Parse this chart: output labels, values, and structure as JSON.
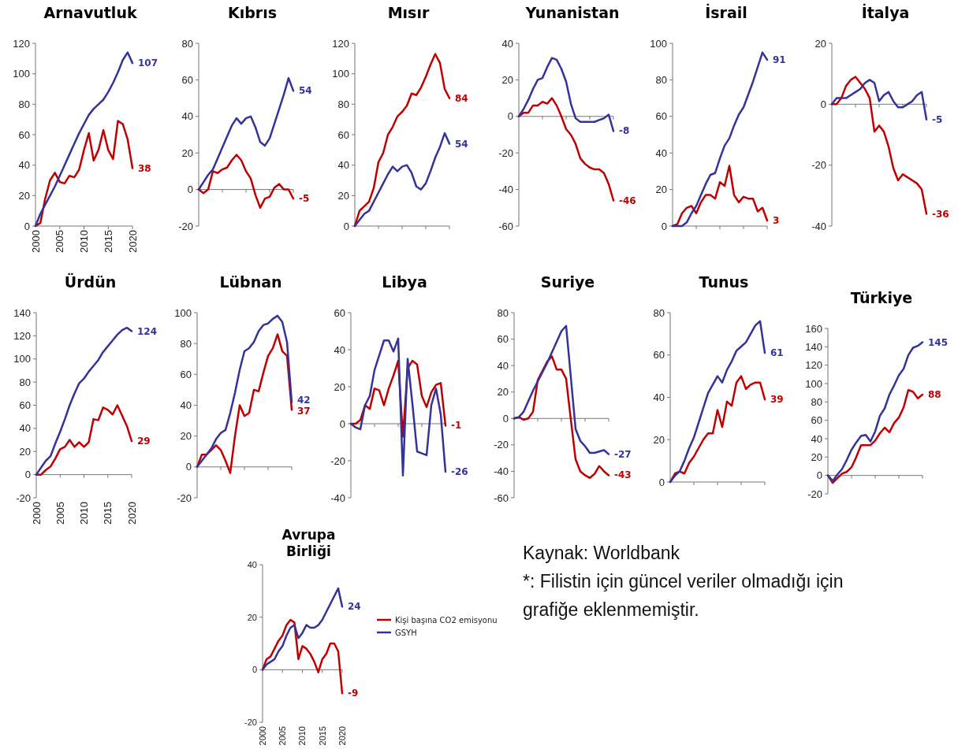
{
  "chart_data": [
    {
      "type": "line",
      "title": "Arnavutluk",
      "x": [
        2000,
        2001,
        2002,
        2003,
        2004,
        2005,
        2006,
        2007,
        2008,
        2009,
        2010,
        2011,
        2012,
        2013,
        2014,
        2015,
        2016,
        2017,
        2018,
        2019,
        2020
      ],
      "xlim": [
        2000,
        2020
      ],
      "xticks": [
        2000,
        2005,
        2010,
        2015,
        2020
      ],
      "ylim": [
        0,
        120
      ],
      "yticks": [
        0,
        20,
        40,
        60,
        80,
        100,
        120
      ],
      "series": [
        {
          "color": "#c00000",
          "values": [
            0,
            2,
            18,
            30,
            35,
            29,
            28,
            33,
            32,
            37,
            50,
            61,
            43,
            50,
            63,
            50,
            44,
            69,
            67,
            57,
            38
          ],
          "value_labels": [
            null,
            null,
            null,
            null,
            null,
            null,
            null,
            null,
            null,
            null,
            null,
            null,
            null,
            null,
            null,
            null,
            null,
            null,
            null,
            null,
            "38"
          ]
        },
        {
          "color": "#333399",
          "values": [
            0,
            8,
            14,
            20,
            26,
            33,
            40,
            47,
            54,
            61,
            67,
            73,
            77,
            80,
            83,
            88,
            94,
            101,
            109,
            114,
            107
          ],
          "value_labels": [
            null,
            null,
            null,
            null,
            null,
            null,
            null,
            null,
            null,
            null,
            null,
            null,
            null,
            null,
            null,
            null,
            null,
            null,
            null,
            null,
            "107"
          ]
        }
      ]
    },
    {
      "type": "line",
      "title": "Kıbrıs",
      "tick_labels": "y",
      "categories": [
        null,
        null,
        null,
        null,
        null,
        null,
        null,
        null,
        null,
        null,
        null,
        null,
        null,
        null,
        null,
        null,
        null,
        null,
        null,
        null,
        null
      ],
      "ylim": [
        -20,
        80
      ],
      "yticks": [
        -20,
        0,
        20,
        40,
        60,
        80
      ],
      "series": [
        {
          "color": "#c00000",
          "values": [
            0,
            -2,
            0,
            10,
            9,
            11,
            12,
            16,
            19,
            16,
            10,
            6,
            -3,
            -10,
            -5,
            -4,
            1,
            3,
            0,
            0,
            -5
          ],
          "value_labels": [
            null,
            null,
            null,
            null,
            null,
            null,
            null,
            null,
            null,
            null,
            null,
            null,
            null,
            null,
            null,
            null,
            null,
            null,
            null,
            null,
            "-5"
          ]
        },
        {
          "color": "#333399",
          "values": [
            0,
            4,
            8,
            11,
            17,
            23,
            29,
            35,
            39,
            36,
            39,
            40,
            34,
            26,
            24,
            28,
            36,
            44,
            52,
            61,
            54
          ],
          "value_labels": [
            null,
            null,
            null,
            null,
            null,
            null,
            null,
            null,
            null,
            null,
            null,
            null,
            null,
            null,
            null,
            null,
            null,
            null,
            null,
            null,
            "54"
          ]
        }
      ]
    },
    {
      "type": "line",
      "title": "Mısır",
      "tick_labels": "y",
      "categories": [
        null,
        null,
        null,
        null,
        null,
        null,
        null,
        null,
        null,
        null,
        null,
        null,
        null,
        null,
        null,
        null,
        null,
        null,
        null,
        null,
        null
      ],
      "ylim": [
        0,
        120
      ],
      "yticks": [
        0,
        20,
        40,
        60,
        80,
        100,
        120
      ],
      "series": [
        {
          "color": "#c00000",
          "values": [
            0,
            10,
            13,
            16,
            25,
            42,
            48,
            60,
            65,
            72,
            75,
            79,
            87,
            86,
            91,
            98,
            106,
            113,
            107,
            90,
            84
          ],
          "value_labels": [
            null,
            null,
            null,
            null,
            null,
            null,
            null,
            null,
            null,
            null,
            null,
            null,
            null,
            null,
            null,
            null,
            null,
            null,
            null,
            null,
            "84"
          ]
        },
        {
          "color": "#333399",
          "values": [
            0,
            4,
            8,
            10,
            16,
            22,
            28,
            34,
            39,
            36,
            39,
            40,
            35,
            26,
            24,
            28,
            36,
            45,
            52,
            61,
            54
          ],
          "value_labels": [
            null,
            null,
            null,
            null,
            null,
            null,
            null,
            null,
            null,
            null,
            null,
            null,
            null,
            null,
            null,
            null,
            null,
            null,
            null,
            null,
            "54"
          ]
        }
      ]
    },
    {
      "type": "line",
      "title": "Yunanistan",
      "tick_labels": "y",
      "categories": [
        null,
        null,
        null,
        null,
        null,
        null,
        null,
        null,
        null,
        null,
        null,
        null,
        null,
        null,
        null,
        null,
        null,
        null,
        null,
        null,
        null
      ],
      "ylim": [
        -60,
        40
      ],
      "yticks": [
        -60,
        -40,
        -20,
        0,
        20,
        40
      ],
      "series": [
        {
          "color": "#c00000",
          "values": [
            0,
            2,
            2,
            6,
            6,
            8,
            7,
            10,
            6,
            0,
            -7,
            -10,
            -15,
            -23,
            -26,
            -28,
            -29,
            -29,
            -31,
            -37,
            -46
          ],
          "value_labels": [
            null,
            null,
            null,
            null,
            null,
            null,
            null,
            null,
            null,
            null,
            null,
            null,
            null,
            null,
            null,
            null,
            null,
            null,
            null,
            null,
            "-46"
          ]
        },
        {
          "color": "#333399",
          "values": [
            0,
            4,
            9,
            15,
            20,
            21,
            27,
            32,
            31,
            26,
            19,
            7,
            -1,
            -3,
            -3,
            -3,
            -3,
            -2,
            -1,
            1,
            -8
          ],
          "value_labels": [
            null,
            null,
            null,
            null,
            null,
            null,
            null,
            null,
            null,
            null,
            null,
            null,
            null,
            null,
            null,
            null,
            null,
            null,
            null,
            null,
            "-8"
          ]
        }
      ]
    },
    {
      "type": "line",
      "title": "İsrail",
      "tick_labels": "y",
      "categories": [
        null,
        null,
        null,
        null,
        null,
        null,
        null,
        null,
        null,
        null,
        null,
        null,
        null,
        null,
        null,
        null,
        null,
        null,
        null,
        null,
        null
      ],
      "ylim": [
        0,
        100
      ],
      "yticks": [
        0,
        20,
        40,
        60,
        80,
        100
      ],
      "series": [
        {
          "color": "#c00000",
          "values": [
            0,
            1,
            7,
            10,
            11,
            7,
            13,
            17,
            17,
            15,
            24,
            22,
            33,
            17,
            13,
            16,
            15,
            15,
            8,
            10,
            3
          ],
          "value_labels": [
            null,
            null,
            null,
            null,
            null,
            null,
            null,
            null,
            null,
            null,
            null,
            null,
            null,
            null,
            null,
            null,
            null,
            null,
            null,
            null,
            "3"
          ]
        },
        {
          "color": "#333399",
          "values": [
            0,
            0,
            0,
            2,
            7,
            11,
            17,
            23,
            28,
            29,
            37,
            44,
            48,
            55,
            61,
            65,
            72,
            79,
            87,
            95,
            91
          ],
          "value_labels": [
            null,
            null,
            null,
            null,
            null,
            null,
            null,
            null,
            null,
            null,
            null,
            null,
            null,
            null,
            null,
            null,
            null,
            null,
            null,
            null,
            "91"
          ]
        }
      ]
    },
    {
      "type": "line",
      "title": "İtalya",
      "tick_labels": "y",
      "categories": [
        null,
        null,
        null,
        null,
        null,
        null,
        null,
        null,
        null,
        null,
        null,
        null,
        null,
        null,
        null,
        null,
        null,
        null,
        null,
        null,
        null
      ],
      "ylim": [
        -40,
        20
      ],
      "yticks": [
        -40,
        -20,
        0,
        20
      ],
      "series": [
        {
          "color": "#c00000",
          "values": [
            0,
            0,
            2,
            6,
            8,
            9,
            7,
            5,
            2,
            -9,
            -7,
            -9,
            -14,
            -21,
            -25,
            -23,
            -24,
            -25,
            -26,
            -28,
            -36
          ],
          "value_labels": [
            null,
            null,
            null,
            null,
            null,
            null,
            null,
            null,
            null,
            null,
            null,
            null,
            null,
            null,
            null,
            null,
            null,
            null,
            null,
            null,
            "-36"
          ]
        },
        {
          "color": "#333399",
          "values": [
            0,
            2,
            2,
            2,
            3,
            4,
            5,
            7,
            8,
            7,
            1,
            3,
            4,
            1,
            -1,
            -1,
            0,
            1,
            3,
            4,
            -5
          ],
          "value_labels": [
            null,
            null,
            null,
            null,
            null,
            null,
            null,
            null,
            null,
            null,
            null,
            null,
            null,
            null,
            null,
            null,
            null,
            null,
            null,
            null,
            "-5"
          ]
        }
      ]
    },
    {
      "type": "line",
      "title": "Ürdün",
      "x": [
        2000,
        2001,
        2002,
        2003,
        2004,
        2005,
        2006,
        2007,
        2008,
        2009,
        2010,
        2011,
        2012,
        2013,
        2014,
        2015,
        2016,
        2017,
        2018,
        2019,
        2020
      ],
      "xlim": [
        2000,
        2020
      ],
      "xticks": [
        2000,
        2005,
        2010,
        2015,
        2020
      ],
      "ylim": [
        -20,
        140
      ],
      "yticks": [
        -20,
        0,
        20,
        40,
        60,
        80,
        100,
        120,
        140
      ],
      "series": [
        {
          "color": "#c00000",
          "values": [
            0,
            0,
            4,
            7,
            14,
            22,
            24,
            30,
            24,
            28,
            24,
            28,
            48,
            47,
            58,
            56,
            52,
            60,
            51,
            42,
            29
          ],
          "value_labels": [
            null,
            null,
            null,
            null,
            null,
            null,
            null,
            null,
            null,
            null,
            null,
            null,
            null,
            null,
            null,
            null,
            null,
            null,
            null,
            null,
            "29"
          ]
        },
        {
          "color": "#333399",
          "values": [
            0,
            6,
            12,
            16,
            27,
            37,
            48,
            60,
            70,
            79,
            83,
            89,
            94,
            99,
            106,
            111,
            116,
            121,
            125,
            127,
            124
          ],
          "value_labels": [
            null,
            null,
            null,
            null,
            null,
            null,
            null,
            null,
            null,
            null,
            null,
            null,
            null,
            null,
            null,
            null,
            null,
            null,
            null,
            null,
            "124"
          ]
        }
      ]
    },
    {
      "type": "line",
      "title": "Lübnan",
      "tick_labels": "y",
      "categories": [
        null,
        null,
        null,
        null,
        null,
        null,
        null,
        null,
        null,
        null,
        null,
        null,
        null,
        null,
        null,
        null,
        null,
        null,
        null,
        null,
        null
      ],
      "ylim": [
        -20,
        100
      ],
      "yticks": [
        -20,
        0,
        20,
        40,
        60,
        80,
        100
      ],
      "series": [
        {
          "color": "#c00000",
          "values": [
            0,
            8,
            8,
            11,
            14,
            11,
            4,
            -4,
            20,
            40,
            33,
            35,
            50,
            49,
            61,
            72,
            77,
            86,
            75,
            72,
            37
          ],
          "value_labels": [
            null,
            null,
            null,
            null,
            null,
            null,
            null,
            null,
            null,
            null,
            null,
            null,
            null,
            null,
            null,
            null,
            null,
            null,
            null,
            null,
            "37"
          ]
        },
        {
          "color": "#333399",
          "values": [
            0,
            4,
            8,
            12,
            18,
            22,
            24,
            35,
            48,
            63,
            75,
            77,
            81,
            88,
            92,
            93,
            96,
            98,
            94,
            81,
            42
          ],
          "value_labels": [
            null,
            null,
            null,
            null,
            null,
            null,
            null,
            null,
            null,
            null,
            null,
            null,
            null,
            null,
            null,
            null,
            null,
            null,
            null,
            null,
            "42"
          ]
        }
      ]
    },
    {
      "type": "line",
      "title": "Libya",
      "tick_labels": "y",
      "categories": [
        null,
        null,
        null,
        null,
        null,
        null,
        null,
        null,
        null,
        null,
        null,
        null,
        null,
        null,
        null,
        null,
        null,
        null,
        null,
        null,
        null
      ],
      "ylim": [
        -40,
        60
      ],
      "yticks": [
        -40,
        -20,
        0,
        20,
        40,
        60
      ],
      "series": [
        {
          "color": "#c00000",
          "values": [
            0,
            0,
            2,
            10,
            8,
            19,
            18,
            10,
            19,
            26,
            34,
            -7,
            30,
            34,
            32,
            15,
            9,
            17,
            21,
            22,
            -1
          ],
          "value_labels": [
            null,
            null,
            null,
            null,
            null,
            null,
            null,
            null,
            null,
            null,
            null,
            null,
            null,
            null,
            null,
            null,
            null,
            null,
            null,
            null,
            "-1"
          ]
        },
        {
          "color": "#333399",
          "values": [
            0,
            -2,
            -3,
            10,
            15,
            29,
            37,
            45,
            45,
            39,
            46,
            -28,
            35,
            11,
            -15,
            -16,
            -17,
            10,
            19,
            5,
            -26
          ],
          "value_labels": [
            null,
            null,
            null,
            null,
            null,
            null,
            null,
            null,
            null,
            null,
            null,
            null,
            null,
            null,
            null,
            null,
            null,
            null,
            null,
            null,
            "-26"
          ]
        }
      ]
    },
    {
      "type": "line",
      "title": "Suriye",
      "tick_labels": "y",
      "categories": [
        null,
        null,
        null,
        null,
        null,
        null,
        null,
        null,
        null,
        null,
        null,
        null,
        null,
        null,
        null,
        null,
        null,
        null,
        null,
        null,
        null
      ],
      "ylim": [
        -60,
        80
      ],
      "yticks": [
        -60,
        -40,
        -20,
        0,
        20,
        40,
        60,
        80
      ],
      "series": [
        {
          "color": "#c00000",
          "values": [
            0,
            1,
            -1,
            0,
            5,
            29,
            36,
            43,
            47,
            37,
            37,
            30,
            -1,
            -31,
            -40,
            -43,
            -45,
            -42,
            -36,
            -40,
            -43
          ],
          "value_labels": [
            null,
            null,
            null,
            null,
            null,
            null,
            null,
            null,
            null,
            null,
            null,
            null,
            null,
            null,
            null,
            null,
            null,
            null,
            null,
            null,
            "-43"
          ]
        },
        {
          "color": "#333399",
          "values": [
            0,
            1,
            5,
            13,
            21,
            28,
            35,
            42,
            50,
            58,
            66,
            70,
            31,
            -8,
            -17,
            -21,
            -26,
            -26,
            -25,
            -24,
            -27
          ],
          "value_labels": [
            null,
            null,
            null,
            null,
            null,
            null,
            null,
            null,
            null,
            null,
            null,
            null,
            null,
            null,
            null,
            null,
            null,
            null,
            null,
            null,
            "-27"
          ]
        }
      ]
    },
    {
      "type": "line",
      "title": "Tunus",
      "tick_labels": "y",
      "categories": [
        null,
        null,
        null,
        null,
        null,
        null,
        null,
        null,
        null,
        null,
        null,
        null,
        null,
        null,
        null,
        null,
        null,
        null,
        null,
        null,
        null
      ],
      "ylim": [
        0,
        80
      ],
      "yticks": [
        0,
        20,
        40,
        60,
        80
      ],
      "series": [
        {
          "color": "#c00000",
          "values": [
            0,
            4,
            5,
            4,
            9,
            12,
            16,
            20,
            23,
            23,
            34,
            26,
            38,
            36,
            47,
            50,
            44,
            46,
            47,
            47,
            39
          ],
          "value_labels": [
            null,
            null,
            null,
            null,
            null,
            null,
            null,
            null,
            null,
            null,
            null,
            null,
            null,
            null,
            null,
            null,
            null,
            null,
            null,
            null,
            "39"
          ]
        },
        {
          "color": "#333399",
          "values": [
            0,
            3,
            5,
            10,
            16,
            21,
            28,
            35,
            42,
            46,
            50,
            47,
            53,
            57,
            62,
            64,
            66,
            70,
            74,
            76,
            61
          ],
          "value_labels": [
            null,
            null,
            null,
            null,
            null,
            null,
            null,
            null,
            null,
            null,
            null,
            null,
            null,
            null,
            null,
            null,
            null,
            null,
            null,
            null,
            "61"
          ]
        }
      ]
    },
    {
      "type": "line",
      "title": "Türkiye",
      "tick_labels": "y",
      "categories": [
        null,
        null,
        null,
        null,
        null,
        null,
        null,
        null,
        null,
        null,
        null,
        null,
        null,
        null,
        null,
        null,
        null,
        null,
        null,
        null,
        null
      ],
      "ylim": [
        -20,
        160
      ],
      "yticks": [
        -20,
        0,
        20,
        40,
        60,
        80,
        100,
        120,
        140,
        160
      ],
      "series": [
        {
          "color": "#c00000",
          "values": [
            0,
            -8,
            -3,
            2,
            4,
            9,
            20,
            33,
            33,
            33,
            38,
            46,
            52,
            47,
            57,
            63,
            74,
            93,
            91,
            84,
            88
          ],
          "value_labels": [
            null,
            null,
            null,
            null,
            null,
            null,
            null,
            null,
            null,
            null,
            null,
            null,
            null,
            null,
            null,
            null,
            null,
            null,
            null,
            null,
            "88"
          ]
        },
        {
          "color": "#333399",
          "values": [
            0,
            -6,
            1,
            7,
            17,
            28,
            36,
            43,
            44,
            37,
            48,
            65,
            73,
            88,
            98,
            109,
            116,
            131,
            139,
            141,
            145
          ],
          "value_labels": [
            null,
            null,
            null,
            null,
            null,
            null,
            null,
            null,
            null,
            null,
            null,
            null,
            null,
            null,
            null,
            null,
            null,
            null,
            null,
            null,
            "145"
          ]
        }
      ]
    },
    {
      "type": "line",
      "title": "Avrupa Birliği",
      "legend": "right",
      "x": [
        2000,
        2001,
        2002,
        2003,
        2004,
        2005,
        2006,
        2007,
        2008,
        2009,
        2010,
        2011,
        2012,
        2013,
        2014,
        2015,
        2016,
        2017,
        2018,
        2019,
        2020
      ],
      "xlim": [
        2000,
        2020
      ],
      "xticks": [
        2000,
        2005,
        2010,
        2015,
        2020
      ],
      "ylim": [
        -20,
        40
      ],
      "yticks": [
        -20,
        0,
        20,
        40
      ],
      "annotations": [
        "Kaynak: Worldbank",
        "*: Filistin için güncel veriler olmadığı için grafiğe eklenmemiştir."
      ],
      "series": [
        {
          "name": "Kişi başına CO2 emisyonu",
          "color": "#c00000",
          "values": [
            0,
            4,
            5,
            8,
            11,
            13,
            17,
            19,
            18,
            4,
            9,
            8,
            6,
            3,
            -1,
            4,
            6,
            10,
            10,
            7,
            -9
          ],
          "value_labels": [
            null,
            null,
            null,
            null,
            null,
            null,
            null,
            null,
            null,
            null,
            null,
            null,
            null,
            null,
            null,
            null,
            null,
            null,
            null,
            null,
            "-9"
          ]
        },
        {
          "name": "GSYH",
          "color": "#333399",
          "values": [
            0,
            2,
            3,
            4,
            7,
            9,
            13,
            16,
            17,
            12,
            14,
            17,
            16,
            16,
            17,
            19,
            22,
            25,
            28,
            31,
            24
          ],
          "value_labels": [
            null,
            null,
            null,
            null,
            null,
            null,
            null,
            null,
            null,
            null,
            null,
            null,
            null,
            null,
            null,
            null,
            null,
            null,
            null,
            null,
            "24"
          ]
        }
      ]
    }
  ]
}
